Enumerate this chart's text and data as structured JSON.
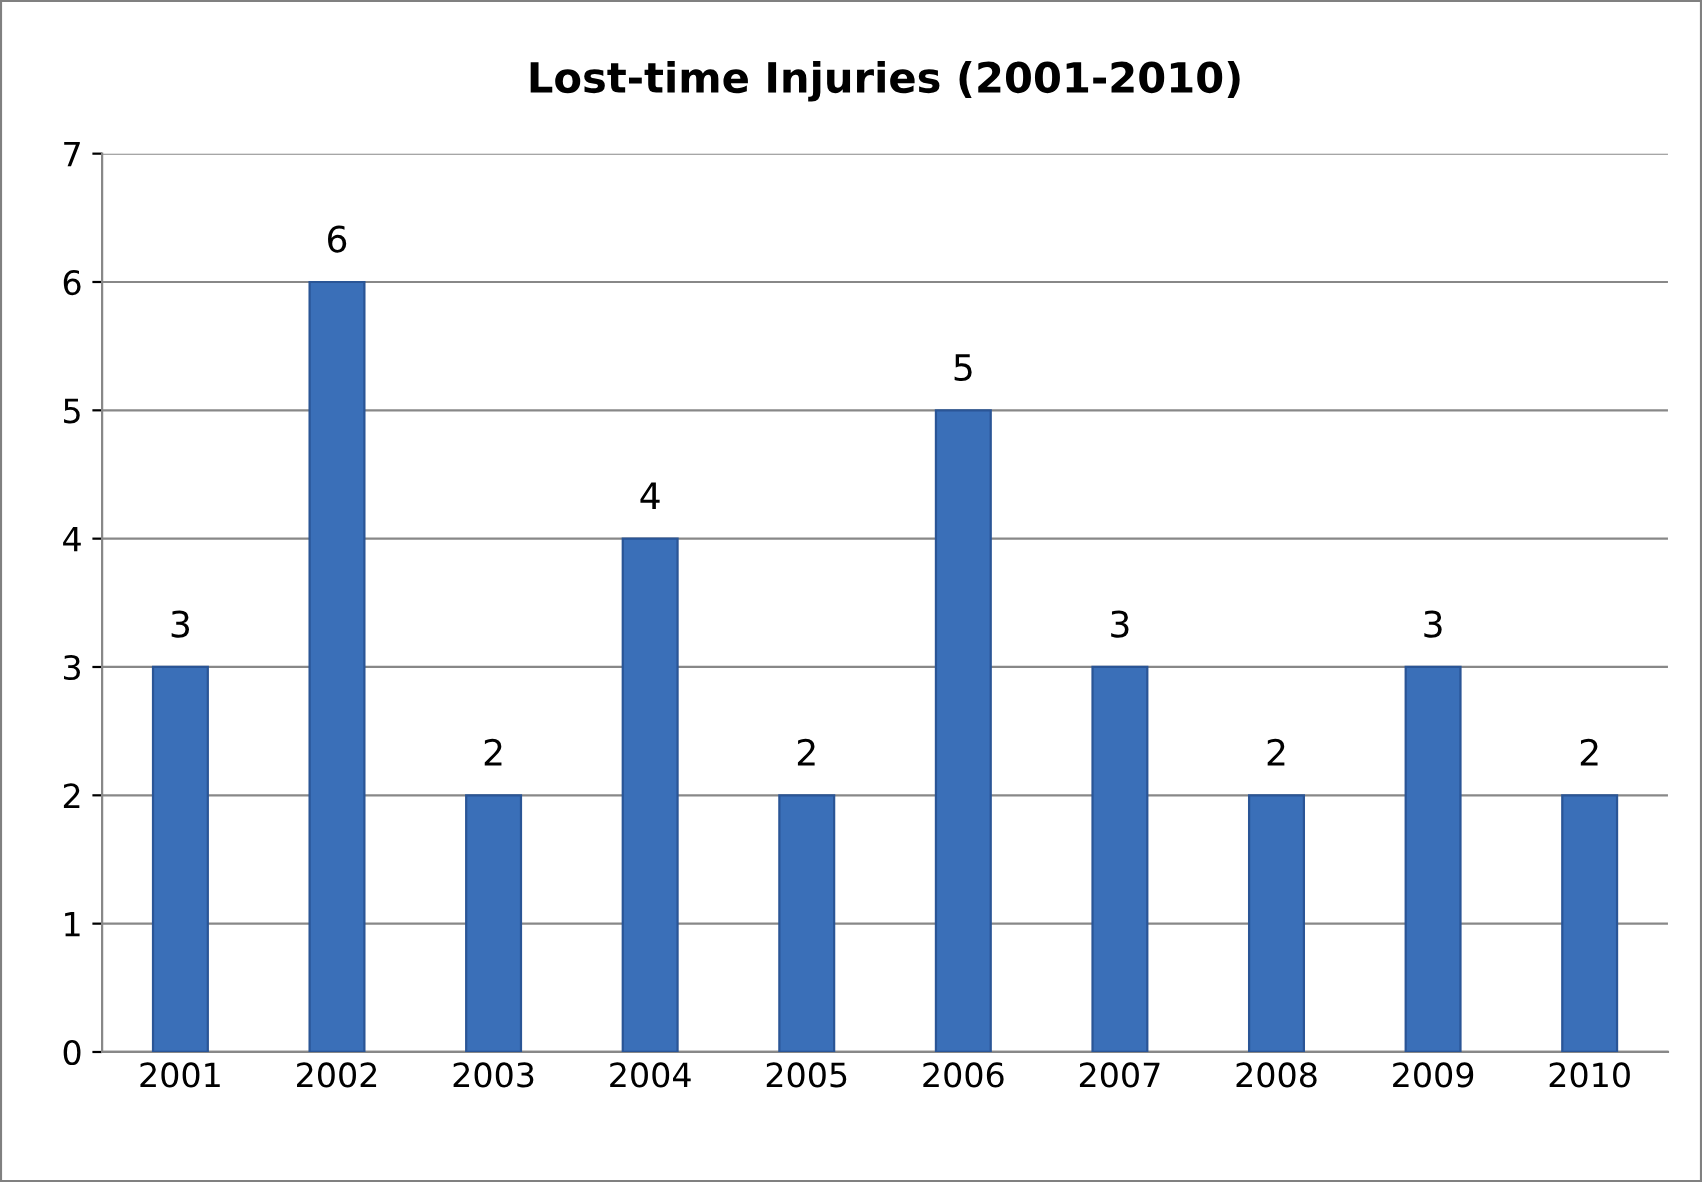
{
  "chart_data": {
    "type": "bar",
    "title": "Lost-time Injuries (2001-2010)",
    "categories": [
      "2001",
      "2002",
      "2003",
      "2004",
      "2005",
      "2006",
      "2007",
      "2008",
      "2009",
      "2010"
    ],
    "values": [
      3,
      6,
      2,
      4,
      2,
      5,
      3,
      2,
      3,
      2
    ],
    "color": "#3a6fb8",
    "ylim": [
      0,
      7
    ],
    "yticks": [
      0,
      1,
      2,
      3,
      4,
      5,
      6,
      7
    ],
    "grid": "y",
    "data_labels": true
  }
}
